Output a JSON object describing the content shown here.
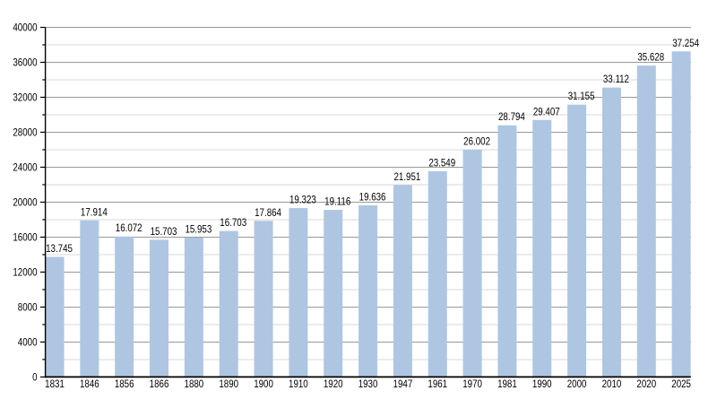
{
  "chart_data": {
    "type": "bar",
    "title": "",
    "xlabel": "",
    "ylabel": "",
    "categories": [
      "1831",
      "1846",
      "1856",
      "1866",
      "1880",
      "1890",
      "1900",
      "1910",
      "1920",
      "1930",
      "1947",
      "1961",
      "1970",
      "1981",
      "1990",
      "2000",
      "2010",
      "2020",
      "2025"
    ],
    "values": [
      13745,
      17914,
      16072,
      15703,
      15953,
      16703,
      17864,
      19323,
      19116,
      19636,
      21951,
      23549,
      26002,
      28794,
      29407,
      31155,
      33112,
      35628,
      37254
    ],
    "bar_labels": [
      "13.745",
      "17.914",
      "16.072",
      "15.703",
      "15.953",
      "16.703",
      "17.864",
      "19.323",
      "19.116",
      "19.636",
      "21.951",
      "23.549",
      "26.002",
      "28.794",
      "29.407",
      "31.155",
      "33.112",
      "35.628",
      "37.254"
    ],
    "ylim": [
      0,
      40000
    ],
    "y_major_tick_step": 4000,
    "y_minor_tick_step": 2000,
    "y_tick_labels": [
      "0",
      "4000",
      "8000",
      "12000",
      "16000",
      "20000",
      "24000",
      "28000",
      "32000",
      "36000",
      "40000"
    ],
    "grid": "major and minor horizontal gridlines",
    "legend_position": "none",
    "colors": {
      "bar_fill": "#aec6e2",
      "major_gridline": "#999999",
      "minor_gridline": "#d9d9d9",
      "axis": "#000000",
      "text": "#000000",
      "background": "#ffffff"
    }
  }
}
